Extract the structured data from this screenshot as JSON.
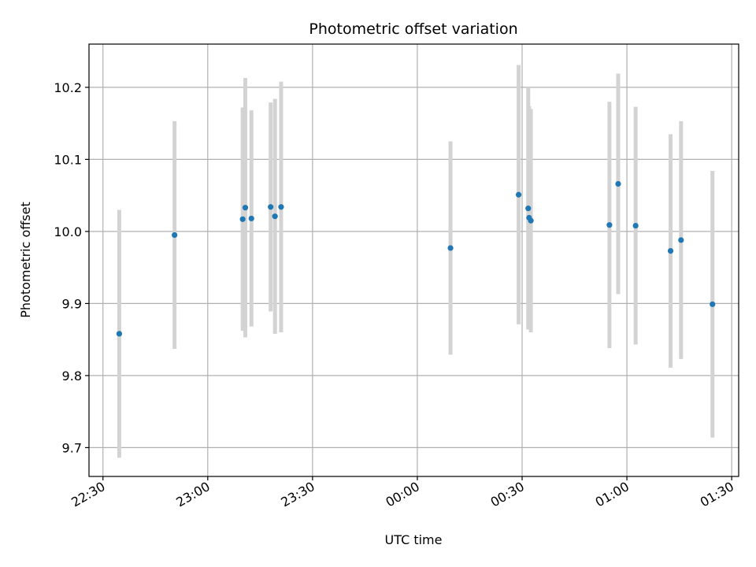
{
  "chart_data": {
    "type": "scatter",
    "title": "Photometric offset variation",
    "xlabel": "UTC time",
    "ylabel": "Photometric offset",
    "grid": true,
    "x_tick_labels": [
      "22:30",
      "23:00",
      "23:30",
      "00:00",
      "00:30",
      "01:00",
      "01:30"
    ],
    "y_ticks": [
      9.7,
      9.8,
      9.9,
      10.0,
      10.1,
      10.2
    ],
    "y_tick_labels": [
      "9.7",
      "9.8",
      "9.9",
      "10.0",
      "10.1",
      "10.2"
    ],
    "xlim_minutes_from_2230": [
      -4,
      182
    ],
    "ylim": [
      9.66,
      10.26
    ],
    "colors": {
      "point": "#1f77b4",
      "errorbar": "#d3d3d3",
      "grid": "#b0b0b0"
    },
    "points": [
      {
        "x": "22:34:40",
        "y": 9.858,
        "err": 0.172
      },
      {
        "x": "22:50:30",
        "y": 9.995,
        "err": 0.158
      },
      {
        "x": "23:10:00",
        "y": 10.017,
        "err": 0.155
      },
      {
        "x": "23:10:45",
        "y": 10.033,
        "err": 0.18
      },
      {
        "x": "23:12:30",
        "y": 10.018,
        "err": 0.15
      },
      {
        "x": "23:18:00",
        "y": 10.034,
        "err": 0.145
      },
      {
        "x": "23:19:15",
        "y": 10.021,
        "err": 0.163
      },
      {
        "x": "23:21:00",
        "y": 10.034,
        "err": 0.174
      },
      {
        "x": "00:09:30",
        "y": 9.977,
        "err": 0.148
      },
      {
        "x": "00:29:00",
        "y": 10.051,
        "err": 0.18
      },
      {
        "x": "00:31:45",
        "y": 10.032,
        "err": 0.168
      },
      {
        "x": "00:32:00",
        "y": 10.019,
        "err": 0.155
      },
      {
        "x": "00:32:30",
        "y": 10.015,
        "err": 0.155
      },
      {
        "x": "00:55:00",
        "y": 10.009,
        "err": 0.171
      },
      {
        "x": "00:57:30",
        "y": 10.066,
        "err": 0.153
      },
      {
        "x": "01:02:30",
        "y": 10.008,
        "err": 0.165
      },
      {
        "x": "01:12:30",
        "y": 9.973,
        "err": 0.162
      },
      {
        "x": "01:15:30",
        "y": 9.988,
        "err": 0.165
      },
      {
        "x": "01:24:30",
        "y": 9.899,
        "err": 0.185
      }
    ]
  }
}
